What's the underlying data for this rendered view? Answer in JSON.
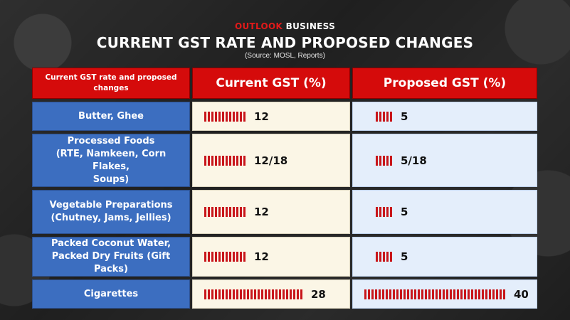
{
  "brand": {
    "part1": "OUTLOOK",
    "part2": "BUSINESS"
  },
  "title": "CURRENT GST RATE AND PROPOSED CHANGES",
  "source": "(Source: MOSL, Reports)",
  "colors": {
    "header_red": "#d50b0b",
    "category_blue": "#3c6ec0",
    "bar_red": "#c8161b",
    "current_bg": "#fbf6e6",
    "proposed_bg": "#e4eefb"
  },
  "chart_data": {
    "type": "table",
    "columns": [
      "Current GST rate and proposed changes",
      "Current GST (%)",
      "Proposed GST (%)"
    ],
    "rows": [
      {
        "category": "Butter, Ghee",
        "current": "12",
        "current_value": 12,
        "proposed": "5",
        "proposed_value": 5
      },
      {
        "category": "Processed Foods (RTE, Namkeen, Corn Flakes, Soups)",
        "current": "12/18",
        "current_value": 12,
        "proposed": "5/18",
        "proposed_value": 5
      },
      {
        "category": "Vegetable Preparations (Chutney, Jams, Jellies)",
        "current": "12",
        "current_value": 12,
        "proposed": "5",
        "proposed_value": 5
      },
      {
        "category": "Packed Coconut Water, Packed Dry Fruits (Gift Packs)",
        "current": "12",
        "current_value": 12,
        "proposed": "5",
        "proposed_value": 5
      },
      {
        "category": "Cigarettes",
        "current": "28",
        "current_value": 28,
        "proposed": "40",
        "proposed_value": 40
      }
    ]
  }
}
